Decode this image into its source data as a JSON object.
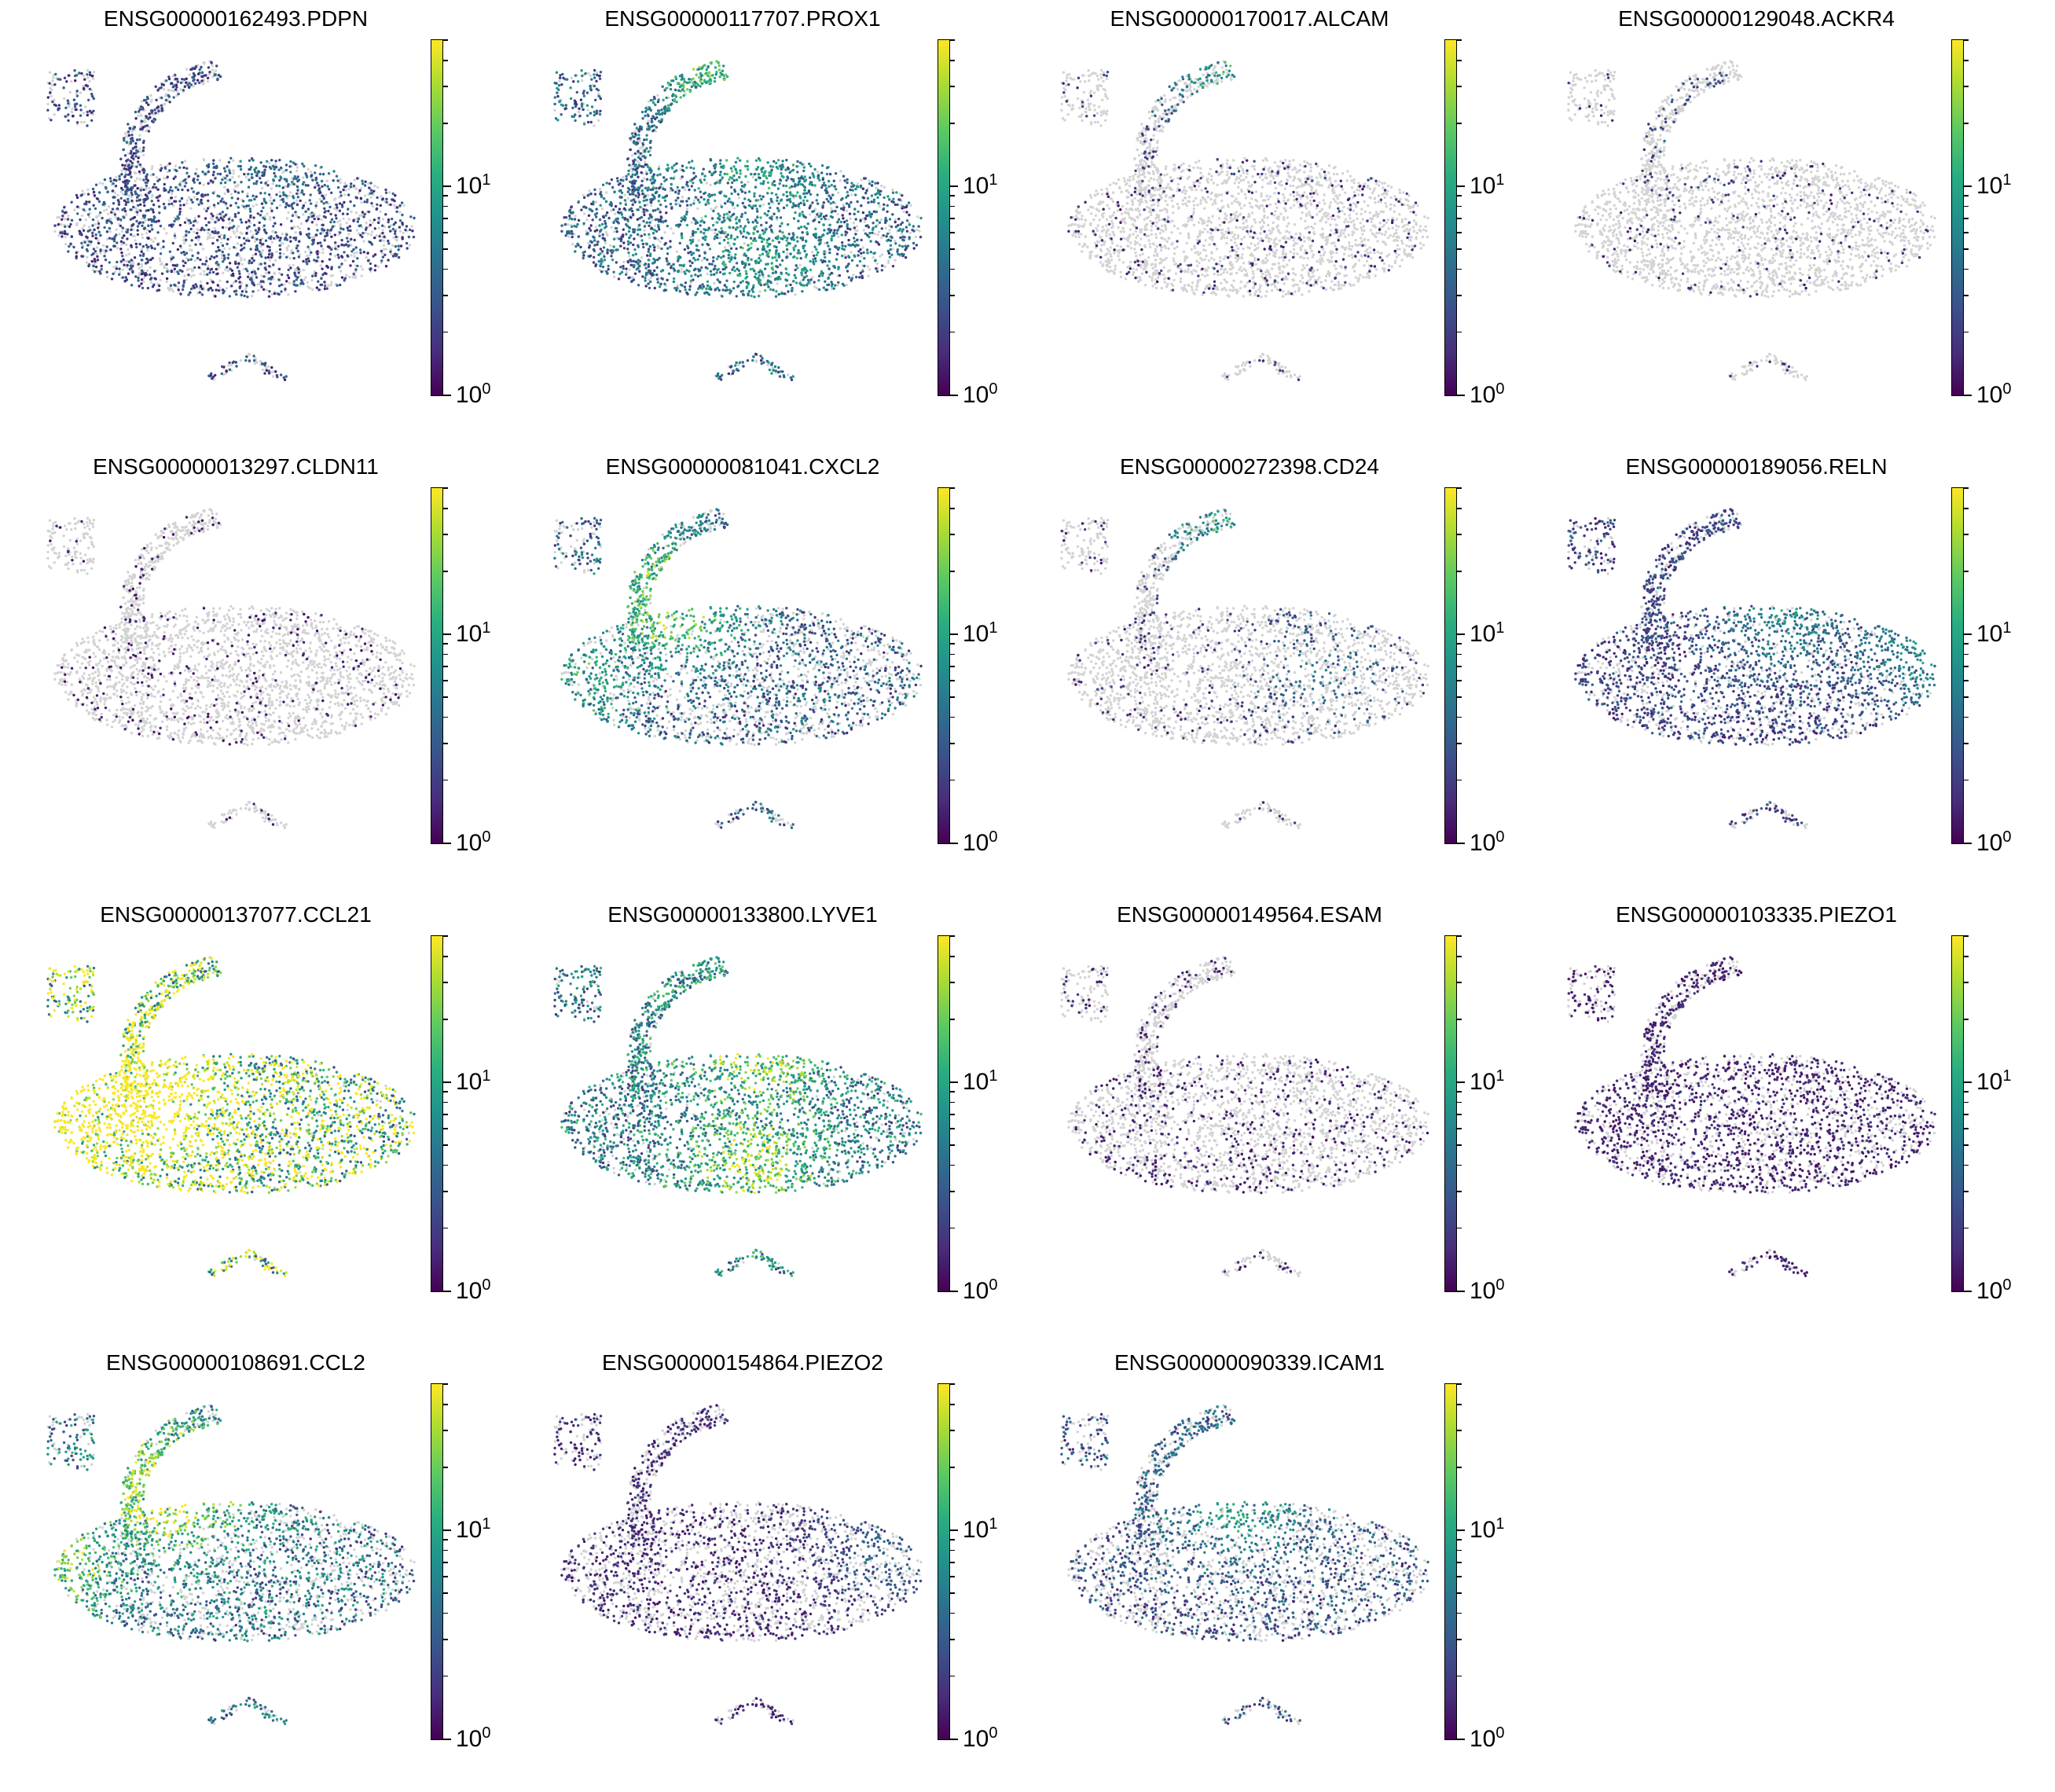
{
  "chart_data": [
    {
      "type": "scatter",
      "title": "ENSG00000162493.PDPN",
      "colorbar": {
        "scale": "log",
        "ticks": [
          {
            "base": "10",
            "exp": "0"
          },
          {
            "base": "10",
            "exp": "1"
          }
        ],
        "cmap": "viridis"
      },
      "pattern": {
        "coverage": 0.62,
        "mean": 0.22,
        "hotspots": [
          [
            0.62,
            0.35,
            0.2
          ]
        ]
      }
    },
    {
      "type": "scatter",
      "title": "ENSG00000117707.PROX1",
      "colorbar": {
        "scale": "log",
        "ticks": [
          {
            "base": "10",
            "exp": "0"
          },
          {
            "base": "10",
            "exp": "1"
          }
        ],
        "cmap": "viridis"
      },
      "pattern": {
        "coverage": 0.78,
        "mean": 0.32,
        "hotspots": [
          [
            0.45,
            0.08,
            0.5
          ],
          [
            0.55,
            0.35,
            0.3
          ],
          [
            0.55,
            0.6,
            0.3
          ]
        ]
      }
    },
    {
      "type": "scatter",
      "title": "ENSG00000170017.ALCAM",
      "colorbar": {
        "scale": "log",
        "ticks": [
          {
            "base": "10",
            "exp": "0"
          },
          {
            "base": "10",
            "exp": "1"
          }
        ],
        "cmap": "viridis"
      },
      "pattern": {
        "coverage": 0.12,
        "mean": 0.15,
        "hotspots": [
          [
            0.45,
            0.1,
            0.55
          ]
        ]
      }
    },
    {
      "type": "scatter",
      "title": "ENSG00000129048.ACKR4",
      "colorbar": {
        "scale": "log",
        "ticks": [
          {
            "base": "10",
            "exp": "0"
          },
          {
            "base": "10",
            "exp": "1"
          }
        ],
        "cmap": "viridis"
      },
      "pattern": {
        "coverage": 0.07,
        "mean": 0.12,
        "hotspots": [
          [
            0.4,
            0.25,
            0.25
          ]
        ]
      }
    },
    {
      "type": "scatter",
      "title": "ENSG00000013297.CLDN11",
      "colorbar": {
        "scale": "log",
        "ticks": [
          {
            "base": "10",
            "exp": "0"
          },
          {
            "base": "10",
            "exp": "1"
          }
        ],
        "cmap": "viridis"
      },
      "pattern": {
        "coverage": 0.1,
        "mean": 0.08,
        "hotspots": []
      }
    },
    {
      "type": "scatter",
      "title": "ENSG00000081041.CXCL2",
      "colorbar": {
        "scale": "log",
        "ticks": [
          {
            "base": "10",
            "exp": "0"
          },
          {
            "base": "10",
            "exp": "1"
          }
        ],
        "cmap": "viridis"
      },
      "pattern": {
        "coverage": 0.55,
        "mean": 0.3,
        "hotspots": [
          [
            0.35,
            0.32,
            0.7
          ],
          [
            0.1,
            0.5,
            0.4
          ]
        ]
      }
    },
    {
      "type": "scatter",
      "title": "ENSG00000272398.CD24",
      "colorbar": {
        "scale": "log",
        "ticks": [
          {
            "base": "10",
            "exp": "0"
          },
          {
            "base": "10",
            "exp": "1"
          }
        ],
        "cmap": "viridis"
      },
      "pattern": {
        "coverage": 0.09,
        "mean": 0.15,
        "hotspots": [
          [
            0.4,
            0.1,
            0.55
          ],
          [
            0.7,
            0.5,
            0.3
          ]
        ]
      }
    },
    {
      "type": "scatter",
      "title": "ENSG00000189056.RELN",
      "colorbar": {
        "scale": "log",
        "ticks": [
          {
            "base": "10",
            "exp": "0"
          },
          {
            "base": "10",
            "exp": "1"
          }
        ],
        "cmap": "viridis"
      },
      "pattern": {
        "coverage": 0.7,
        "mean": 0.2,
        "hotspots": [
          [
            0.6,
            0.35,
            0.35
          ],
          [
            0.95,
            0.42,
            0.4
          ]
        ]
      }
    },
    {
      "type": "scatter",
      "title": "ENSG00000137077.CCL21",
      "colorbar": {
        "scale": "log",
        "ticks": [
          {
            "base": "10",
            "exp": "0"
          },
          {
            "base": "10",
            "exp": "1"
          }
        ],
        "cmap": "viridis"
      },
      "pattern": {
        "coverage": 0.97,
        "mean": 0.75,
        "hotspots": [
          [
            0.05,
            0.5,
            0.95
          ],
          [
            0.3,
            0.45,
            0.9
          ]
        ]
      }
    },
    {
      "type": "scatter",
      "title": "ENSG00000133800.LYVE1",
      "colorbar": {
        "scale": "log",
        "ticks": [
          {
            "base": "10",
            "exp": "0"
          },
          {
            "base": "10",
            "exp": "1"
          }
        ],
        "cmap": "viridis"
      },
      "pattern": {
        "coverage": 0.85,
        "mean": 0.42,
        "hotspots": [
          [
            0.55,
            0.3,
            0.6
          ],
          [
            0.55,
            0.65,
            0.55
          ]
        ]
      }
    },
    {
      "type": "scatter",
      "title": "ENSG00000149564.ESAM",
      "colorbar": {
        "scale": "log",
        "ticks": [
          {
            "base": "10",
            "exp": "0"
          },
          {
            "base": "10",
            "exp": "1"
          }
        ],
        "cmap": "viridis"
      },
      "pattern": {
        "coverage": 0.2,
        "mean": 0.1,
        "hotspots": []
      }
    },
    {
      "type": "scatter",
      "title": "ENSG00000103335.PIEZO1",
      "colorbar": {
        "scale": "log",
        "ticks": [
          {
            "base": "10",
            "exp": "0"
          },
          {
            "base": "10",
            "exp": "1"
          }
        ],
        "cmap": "viridis"
      },
      "pattern": {
        "coverage": 0.6,
        "mean": 0.1,
        "hotspots": []
      }
    },
    {
      "type": "scatter",
      "title": "ENSG00000108691.CCL2",
      "colorbar": {
        "scale": "log",
        "ticks": [
          {
            "base": "10",
            "exp": "0"
          },
          {
            "base": "10",
            "exp": "1"
          }
        ],
        "cmap": "viridis"
      },
      "pattern": {
        "coverage": 0.6,
        "mean": 0.38,
        "hotspots": [
          [
            0.35,
            0.3,
            0.8
          ],
          [
            0.05,
            0.5,
            0.6
          ]
        ]
      }
    },
    {
      "type": "scatter",
      "title": "ENSG00000154864.PIEZO2",
      "colorbar": {
        "scale": "log",
        "ticks": [
          {
            "base": "10",
            "exp": "0"
          },
          {
            "base": "10",
            "exp": "1"
          }
        ],
        "cmap": "viridis"
      },
      "pattern": {
        "coverage": 0.45,
        "mean": 0.12,
        "hotspots": [
          [
            0.9,
            0.45,
            0.3
          ]
        ]
      }
    },
    {
      "type": "scatter",
      "title": "ENSG00000090339.ICAM1",
      "colorbar": {
        "scale": "log",
        "ticks": [
          {
            "base": "10",
            "exp": "0"
          },
          {
            "base": "10",
            "exp": "1"
          }
        ],
        "cmap": "viridis"
      },
      "pattern": {
        "coverage": 0.5,
        "mean": 0.25,
        "hotspots": [
          [
            0.5,
            0.3,
            0.5
          ]
        ]
      }
    }
  ],
  "colors": {
    "unexpressed": "#d3d3d3",
    "cmap_low": "#440154",
    "cmap_high": "#fde725"
  }
}
